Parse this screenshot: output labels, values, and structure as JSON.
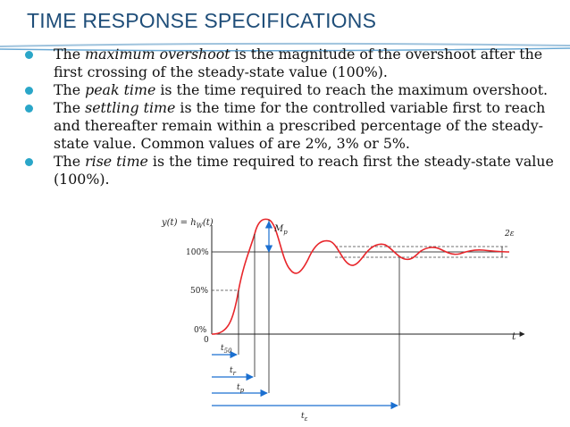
{
  "title": "TIME RESPONSE SPECIFICATIONS",
  "bullets": [
    {
      "pre": "The ",
      "term": "maximum overshoot",
      "post": "  is the magnitude of the overshoot after the first crossing of the steady-state value (100%)."
    },
    {
      "pre": "The ",
      "term": "peak time",
      "post": "  is the time required to reach the maximum overshoot."
    },
    {
      "pre": "The ",
      "term": "settling time",
      "post": "  is the time for the controlled variable first to reach and thereafter remain within a prescribed percentage  of the steady-state value. Common values of  are 2%, 3% or 5%."
    },
    {
      "pre": "The ",
      "term": "rise time",
      "post": "  is the time required to reach first the steady-state value (100%)."
    }
  ],
  "figure": {
    "y_axis_label": "y(t) = h",
    "y_axis_label_sub": "W",
    "y_axis_label_tail": "(t)",
    "t_axis_label": "t",
    "tick_100": "100%",
    "tick_50": "50%",
    "tick_0": "0%",
    "origin": "0",
    "mp_label": "M",
    "mp_sub": "p",
    "band_label": "2ε",
    "t50_label": "t",
    "t50_sub": "50",
    "tr_label": "t",
    "tr_sub": "r",
    "tp_label": "t",
    "tp_sub": "p",
    "te_label": "t",
    "te_sub": "ε",
    "colors": {
      "response": "#e8262b",
      "arrows": "#1b6fd0",
      "title": "#1f4e79",
      "bullet": "#2aa6c8"
    }
  }
}
